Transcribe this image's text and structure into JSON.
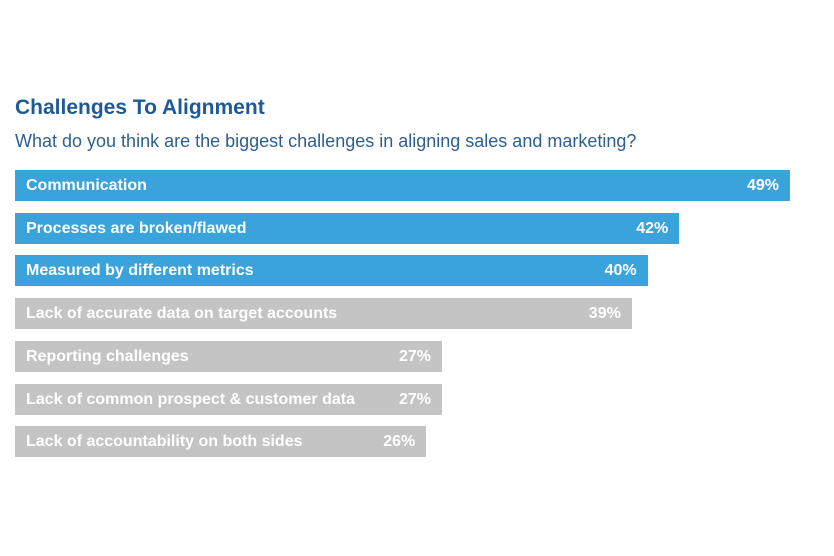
{
  "chart_data": {
    "type": "bar",
    "orientation": "horizontal",
    "title": "Challenges To Alignment",
    "subtitle": "What do you think are the biggest challenges in aligning sales and marketing?",
    "categories": [
      "Communication",
      "Processes are broken/flawed",
      "Measured by different metrics",
      "Lack of accurate data on target accounts",
      "Reporting challenges",
      "Lack of common prospect & customer data",
      "Lack of accountability on both sides"
    ],
    "values": [
      49,
      42,
      40,
      39,
      27,
      27,
      26
    ],
    "value_labels": [
      "49%",
      "42%",
      "40%",
      "39%",
      "27%",
      "27%",
      "26%"
    ],
    "highlighted": [
      true,
      true,
      true,
      false,
      false,
      false,
      false
    ],
    "colors": {
      "highlight": "#3aa3dc",
      "other": "#c4c4c4",
      "title": "#1f5a96",
      "subtitle": "#2f5f8f"
    },
    "xlim": [
      0,
      49
    ],
    "grid": false
  }
}
